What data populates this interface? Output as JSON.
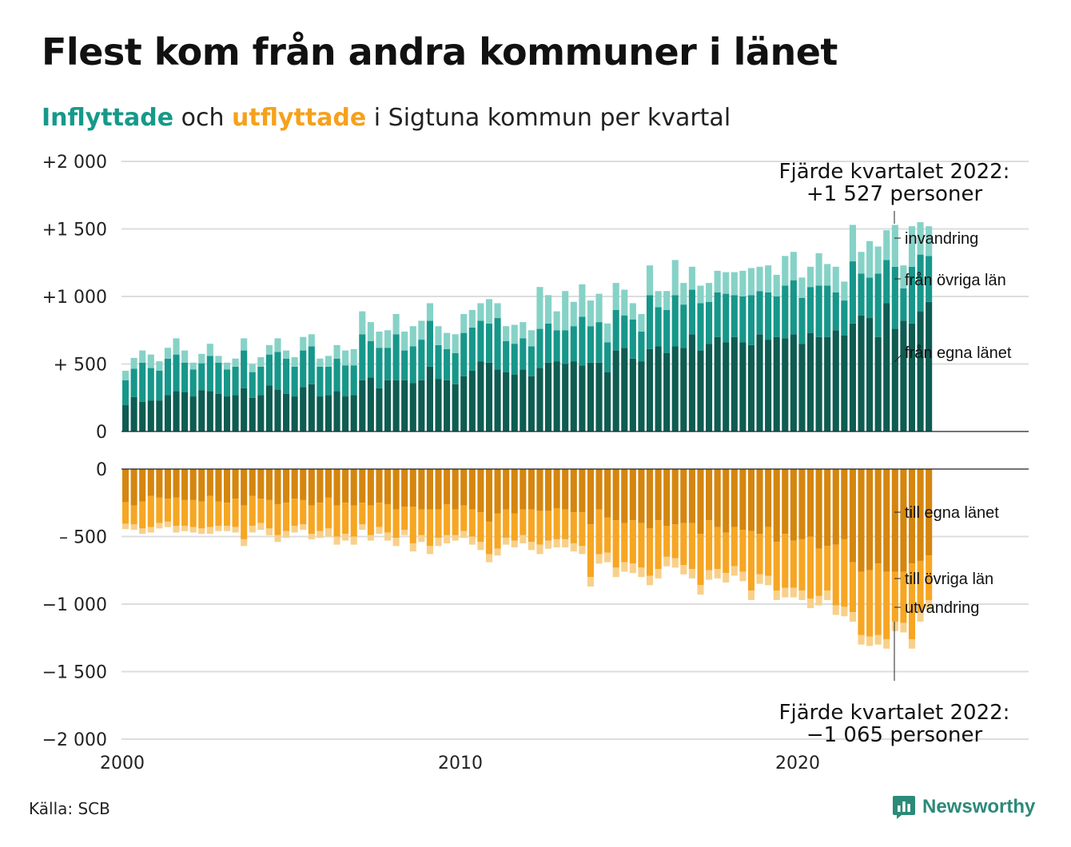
{
  "title": "Flest kom från andra kommuner i länet",
  "subtitle": {
    "in_word": "Inflyttade",
    "and_word": " och ",
    "out_word": "utflyttade",
    "rest": " i Sigtuna kommun per kvartal"
  },
  "source": "Källa: SCB",
  "brand": "Newsworthy",
  "colors": {
    "in_own": "#0e5c52",
    "in_other": "#16978a",
    "in_immig": "#86d2c7",
    "out_own": "#d4860f",
    "out_other": "#f6a623",
    "out_emig": "#f8d08a",
    "grid": "#dddddd",
    "brand": "#2c8a79"
  },
  "chart_data": {
    "type": "bar",
    "stacked": true,
    "x_ticks": [
      "2000",
      "2010",
      "2020"
    ],
    "top_panel": {
      "y_ticks": [
        "+2 000",
        "+1 500",
        "+1 000",
        "+  500",
        "0"
      ],
      "ylim": [
        0,
        2000
      ],
      "series_labels": [
        "från egna länet",
        "från övriga län",
        "invandring"
      ],
      "annotation": [
        "Fjärde kvartalet 2022:",
        "+1 527 personer"
      ]
    },
    "bottom_panel": {
      "y_ticks": [
        "0",
        "–  500",
        "−1 000",
        "−1 500",
        "−2 000"
      ],
      "ylim": [
        -2000,
        0
      ],
      "series_labels": [
        "till egna länet",
        "till övriga län",
        "utvandring"
      ],
      "annotation": [
        "Fjärde kvartalet 2022:",
        "−1 065 personer"
      ]
    },
    "inflyttade": {
      "fran_egna_lanet": [
        195,
        255,
        220,
        230,
        230,
        270,
        300,
        290,
        260,
        305,
        300,
        280,
        260,
        270,
        320,
        250,
        270,
        340,
        310,
        280,
        260,
        330,
        350,
        260,
        270,
        300,
        260,
        270,
        380,
        400,
        320,
        380,
        380,
        380,
        360,
        380,
        480,
        390,
        380,
        350,
        410,
        450,
        520,
        510,
        460,
        440,
        420,
        460,
        410,
        470,
        510,
        520,
        500,
        520,
        490,
        510,
        510,
        440,
        600,
        620,
        540,
        520,
        610,
        630,
        580,
        630,
        620,
        720,
        600,
        650,
        700,
        660,
        700,
        660,
        640,
        720,
        680,
        700,
        690,
        720,
        650,
        730,
        700,
        700,
        750,
        710,
        800,
        860,
        840,
        700,
        950,
        760,
        820,
        800,
        890,
        960
      ],
      "fran_ovriga_lan": [
        185,
        210,
        290,
        240,
        220,
        270,
        270,
        220,
        200,
        200,
        260,
        230,
        200,
        210,
        280,
        190,
        210,
        230,
        280,
        260,
        220,
        270,
        280,
        220,
        210,
        240,
        230,
        220,
        340,
        270,
        300,
        240,
        340,
        220,
        270,
        300,
        340,
        250,
        230,
        230,
        320,
        320,
        300,
        290,
        380,
        230,
        230,
        230,
        220,
        290,
        290,
        230,
        250,
        260,
        360,
        270,
        300,
        220,
        300,
        240,
        290,
        220,
        400,
        290,
        320,
        380,
        320,
        330,
        350,
        310,
        330,
        360,
        310,
        340,
        370,
        320,
        350,
        300,
        390,
        400,
        340,
        340,
        380,
        380,
        280,
        260,
        460,
        310,
        300,
        470,
        320,
        460,
        240,
        420,
        420,
        340
      ],
      "invandring": [
        70,
        80,
        90,
        100,
        70,
        80,
        120,
        90,
        50,
        70,
        90,
        50,
        50,
        60,
        90,
        60,
        70,
        70,
        100,
        60,
        70,
        100,
        90,
        60,
        80,
        100,
        110,
        120,
        170,
        140,
        120,
        130,
        150,
        140,
        150,
        140,
        130,
        140,
        120,
        140,
        140,
        130,
        130,
        180,
        110,
        110,
        140,
        120,
        120,
        310,
        210,
        140,
        290,
        180,
        240,
        190,
        210,
        140,
        200,
        190,
        120,
        130,
        220,
        120,
        140,
        260,
        160,
        170,
        130,
        140,
        160,
        160,
        170,
        190,
        200,
        180,
        200,
        160,
        220,
        210,
        150,
        150,
        240,
        160,
        190,
        140,
        270,
        160,
        270,
        200,
        220,
        310,
        170,
        300,
        240,
        220
      ]
    },
    "utflyttade": {
      "till_egna_lanet": [
        245,
        270,
        240,
        200,
        210,
        220,
        210,
        230,
        230,
        240,
        200,
        240,
        250,
        220,
        270,
        200,
        220,
        230,
        260,
        250,
        220,
        230,
        270,
        250,
        210,
        270,
        250,
        270,
        250,
        270,
        250,
        260,
        300,
        280,
        280,
        300,
        300,
        300,
        260,
        300,
        270,
        300,
        320,
        390,
        330,
        300,
        330,
        300,
        300,
        310,
        310,
        290,
        300,
        320,
        320,
        410,
        300,
        360,
        380,
        400,
        380,
        400,
        440,
        380,
        420,
        410,
        400,
        400,
        480,
        380,
        430,
        470,
        430,
        450,
        460,
        480,
        430,
        540,
        480,
        530,
        520,
        500,
        590,
        570,
        560,
        520,
        690,
        760,
        750,
        700,
        760,
        760,
        760,
        700,
        680,
        640
      ],
      "till_ovriga_lan": [
        160,
        140,
        200,
        230,
        190,
        170,
        210,
        190,
        200,
        200,
        230,
        180,
        170,
        210,
        250,
        220,
        180,
        210,
        230,
        210,
        200,
        180,
        210,
        210,
        230,
        230,
        230,
        230,
        160,
        220,
        180,
        210,
        210,
        170,
        270,
        190,
        270,
        210,
        230,
        190,
        190,
        200,
        220,
        240,
        260,
        210,
        200,
        190,
        240,
        250,
        220,
        230,
        220,
        230,
        250,
        390,
        330,
        260,
        350,
        290,
        320,
        330,
        350,
        360,
        230,
        250,
        310,
        340,
        380,
        370,
        310,
        300,
        290,
        310,
        440,
        300,
        360,
        360,
        400,
        350,
        380,
        460,
        350,
        330,
        450,
        500,
        370,
        470,
        490,
        530,
        500,
        370,
        380,
        560,
        380,
        330
      ],
      "utvandring": [
        40,
        40,
        40,
        40,
        40,
        40,
        50,
        40,
        40,
        40,
        50,
        40,
        40,
        40,
        50,
        50,
        50,
        50,
        50,
        50,
        50,
        40,
        40,
        50,
        60,
        60,
        50,
        60,
        40,
        40,
        50,
        60,
        60,
        40,
        60,
        50,
        60,
        60,
        60,
        40,
        50,
        60,
        60,
        60,
        50,
        50,
        50,
        60,
        60,
        70,
        60,
        60,
        60,
        60,
        60,
        70,
        70,
        70,
        70,
        70,
        70,
        70,
        70,
        70,
        70,
        70,
        70,
        70,
        70,
        70,
        70,
        70,
        70,
        70,
        70,
        70,
        70,
        70,
        70,
        70,
        70,
        70,
        70,
        70,
        70,
        70,
        70,
        70,
        70,
        70,
        70,
        70,
        70,
        70,
        70,
        70
      ]
    }
  }
}
